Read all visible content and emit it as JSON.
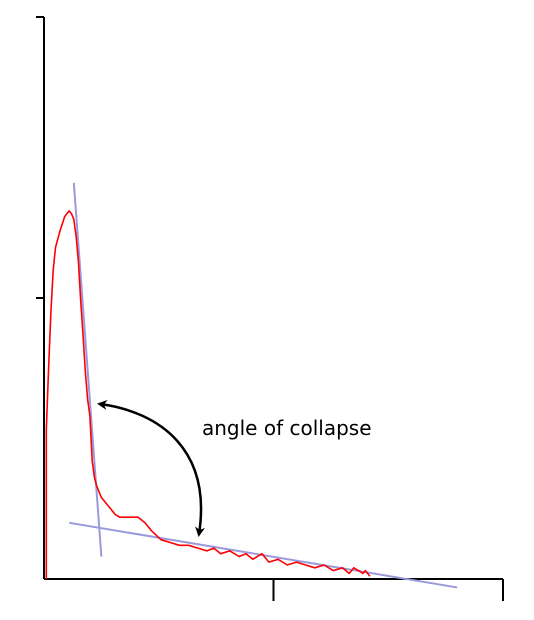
{
  "chart_data": {
    "type": "line",
    "title": "",
    "xlabel": "",
    "ylabel": "",
    "xlim": [
      0,
      2
    ],
    "ylim": [
      0,
      2
    ],
    "xticks": [
      1,
      2
    ],
    "yticks": [
      1
    ],
    "grid": false,
    "series": [
      {
        "color": "#ff0000",
        "points": [
          [
            0.01,
            0.0
          ],
          [
            0.01,
            0.53
          ],
          [
            0.02,
            0.75
          ],
          [
            0.03,
            0.95
          ],
          [
            0.04,
            1.1
          ],
          [
            0.05,
            1.18
          ],
          [
            0.07,
            1.24
          ],
          [
            0.09,
            1.29
          ],
          [
            0.11,
            1.31
          ],
          [
            0.12,
            1.3
          ],
          [
            0.13,
            1.28
          ],
          [
            0.14,
            1.22
          ],
          [
            0.15,
            1.13
          ],
          [
            0.16,
            0.99
          ],
          [
            0.17,
            0.87
          ],
          [
            0.18,
            0.74
          ],
          [
            0.19,
            0.64
          ],
          [
            0.2,
            0.58
          ],
          [
            0.21,
            0.42
          ],
          [
            0.22,
            0.36
          ],
          [
            0.23,
            0.33
          ],
          [
            0.25,
            0.29
          ],
          [
            0.27,
            0.27
          ],
          [
            0.29,
            0.25
          ],
          [
            0.31,
            0.23
          ],
          [
            0.33,
            0.22
          ],
          [
            0.37,
            0.22
          ],
          [
            0.41,
            0.22
          ],
          [
            0.44,
            0.2
          ],
          [
            0.47,
            0.17
          ],
          [
            0.51,
            0.14
          ],
          [
            0.55,
            0.13
          ],
          [
            0.59,
            0.12
          ],
          [
            0.63,
            0.12
          ],
          [
            0.67,
            0.11
          ],
          [
            0.71,
            0.1
          ],
          [
            0.74,
            0.11
          ],
          [
            0.77,
            0.09
          ],
          [
            0.81,
            0.1
          ],
          [
            0.85,
            0.08
          ],
          [
            0.88,
            0.09
          ],
          [
            0.91,
            0.07
          ],
          [
            0.95,
            0.09
          ],
          [
            0.98,
            0.06
          ],
          [
            1.02,
            0.07
          ],
          [
            1.06,
            0.05
          ],
          [
            1.1,
            0.06
          ],
          [
            1.14,
            0.05
          ],
          [
            1.18,
            0.04
          ],
          [
            1.22,
            0.05
          ],
          [
            1.26,
            0.03
          ],
          [
            1.3,
            0.04
          ],
          [
            1.33,
            0.02
          ],
          [
            1.35,
            0.04
          ],
          [
            1.37,
            0.03
          ],
          [
            1.39,
            0.02
          ],
          [
            1.4,
            0.03
          ],
          [
            1.42,
            0.01
          ]
        ]
      }
    ],
    "reference_lines": [
      {
        "color": "#9999dd",
        "points": [
          [
            0.13,
            1.41
          ],
          [
            0.25,
            0.08
          ]
        ]
      },
      {
        "color": "#9999dd",
        "points": [
          [
            0.11,
            0.2
          ],
          [
            1.8,
            -0.03
          ]
        ]
      }
    ],
    "annotations": [
      {
        "text": "angle of collapse",
        "arrow": "double-headed, curved"
      }
    ]
  }
}
